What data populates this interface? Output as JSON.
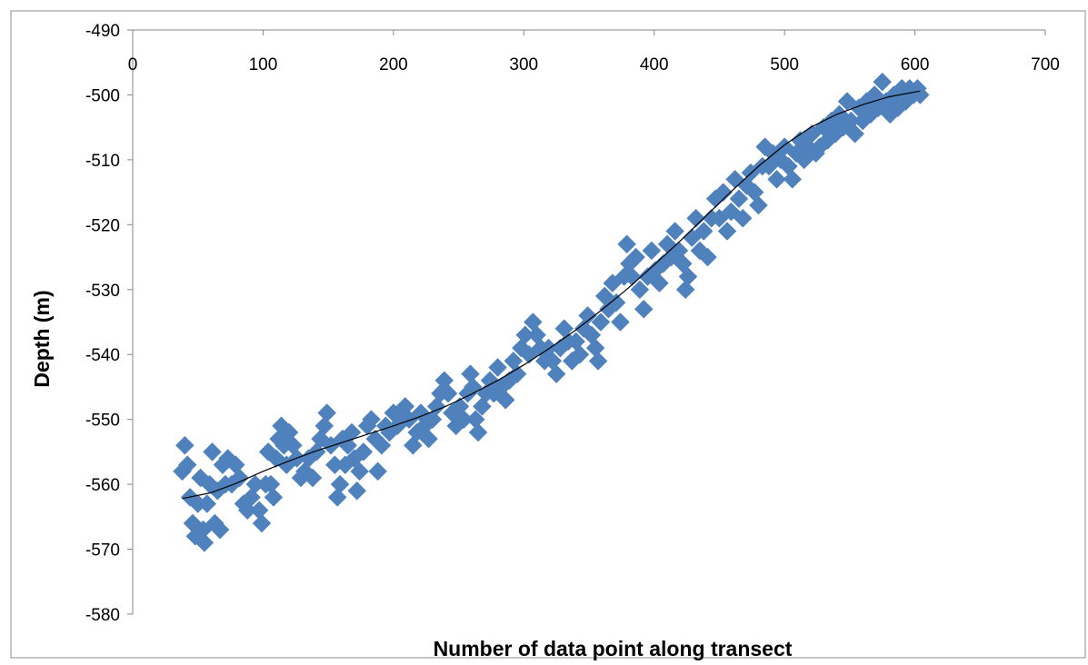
{
  "chart_data": {
    "type": "scatter",
    "title": "",
    "xlabel": "Number of data point along transect",
    "ylabel": "Depth (m)",
    "xlim": [
      0,
      700
    ],
    "ylim": [
      -580,
      -490
    ],
    "x_ticks": [
      0,
      100,
      200,
      300,
      400,
      500,
      600,
      700
    ],
    "y_ticks": [
      -490,
      -500,
      -510,
      -520,
      -530,
      -540,
      -550,
      -560,
      -570,
      -580
    ],
    "x_tick_labels": [
      "0",
      "100",
      "200",
      "300",
      "400",
      "500",
      "600",
      "700"
    ],
    "y_tick_labels": [
      "-490",
      "-500",
      "-510",
      "-520",
      "-530",
      "-540",
      "-550",
      "-560",
      "-570",
      "-580"
    ],
    "x_axis_position": "top",
    "grid": false,
    "legend": "none",
    "marker_color": "#4f81bd",
    "trend_color": "#000000",
    "series": [
      {
        "marker": "diamond",
        "points": [
          [
            38,
            -558
          ],
          [
            40,
            -554
          ],
          [
            42,
            -557
          ],
          [
            44,
            -562
          ],
          [
            46,
            -566
          ],
          [
            48,
            -568
          ],
          [
            50,
            -563
          ],
          [
            52,
            -559
          ],
          [
            54,
            -567
          ],
          [
            55,
            -569
          ],
          [
            57,
            -563
          ],
          [
            59,
            -560
          ],
          [
            61,
            -555
          ],
          [
            63,
            -566
          ],
          [
            65,
            -561
          ],
          [
            67,
            -567
          ],
          [
            69,
            -557
          ],
          [
            71,
            -560
          ],
          [
            73,
            -556
          ],
          [
            76,
            -560
          ],
          [
            79,
            -557
          ],
          [
            82,
            -559
          ],
          [
            85,
            -563
          ],
          [
            88,
            -564
          ],
          [
            91,
            -562
          ],
          [
            94,
            -560
          ],
          [
            97,
            -564
          ],
          [
            99,
            -566
          ],
          [
            102,
            -560
          ],
          [
            104,
            -555
          ],
          [
            106,
            -560
          ],
          [
            108,
            -562
          ],
          [
            110,
            -556
          ],
          [
            112,
            -553
          ],
          [
            114,
            -551
          ],
          [
            116,
            -554
          ],
          [
            118,
            -557
          ],
          [
            120,
            -552
          ],
          [
            123,
            -554
          ],
          [
            126,
            -556
          ],
          [
            129,
            -559
          ],
          [
            132,
            -558
          ],
          [
            135,
            -556
          ],
          [
            138,
            -559
          ],
          [
            141,
            -555
          ],
          [
            144,
            -553
          ],
          [
            147,
            -551
          ],
          [
            149,
            -549
          ],
          [
            152,
            -554
          ],
          [
            155,
            -557
          ],
          [
            157,
            -562
          ],
          [
            159,
            -560
          ],
          [
            161,
            -553
          ],
          [
            163,
            -557
          ],
          [
            165,
            -554
          ],
          [
            168,
            -552
          ],
          [
            170,
            -556
          ],
          [
            172,
            -561
          ],
          [
            174,
            -558
          ],
          [
            177,
            -555
          ],
          [
            180,
            -551
          ],
          [
            183,
            -550
          ],
          [
            186,
            -553
          ],
          [
            188,
            -558
          ],
          [
            191,
            -554
          ],
          [
            194,
            -551
          ],
          [
            197,
            -552
          ],
          [
            200,
            -549
          ],
          [
            203,
            -551
          ],
          [
            206,
            -549
          ],
          [
            209,
            -548
          ],
          [
            212,
            -550
          ],
          [
            215,
            -554
          ],
          [
            218,
            -552
          ],
          [
            221,
            -549
          ],
          [
            224,
            -551
          ],
          [
            227,
            -553
          ],
          [
            230,
            -550
          ],
          [
            233,
            -548
          ],
          [
            236,
            -546
          ],
          [
            239,
            -544
          ],
          [
            242,
            -546
          ],
          [
            245,
            -549
          ],
          [
            248,
            -551
          ],
          [
            251,
            -548
          ],
          [
            254,
            -550
          ],
          [
            257,
            -546
          ],
          [
            259,
            -543
          ],
          [
            261,
            -545
          ],
          [
            263,
            -550
          ],
          [
            265,
            -552
          ],
          [
            268,
            -548
          ],
          [
            271,
            -546
          ],
          [
            274,
            -544
          ],
          [
            277,
            -546
          ],
          [
            280,
            -542
          ],
          [
            283,
            -545
          ],
          [
            286,
            -547
          ],
          [
            289,
            -544
          ],
          [
            292,
            -541
          ],
          [
            295,
            -543
          ],
          [
            298,
            -539
          ],
          [
            301,
            -537
          ],
          [
            304,
            -540
          ],
          [
            307,
            -535
          ],
          [
            310,
            -537
          ],
          [
            313,
            -539
          ],
          [
            316,
            -541
          ],
          [
            319,
            -539
          ],
          [
            322,
            -541
          ],
          [
            325,
            -543
          ],
          [
            328,
            -539
          ],
          [
            331,
            -536
          ],
          [
            334,
            -538
          ],
          [
            337,
            -541
          ],
          [
            340,
            -538
          ],
          [
            343,
            -540
          ],
          [
            346,
            -536
          ],
          [
            349,
            -534
          ],
          [
            352,
            -537
          ],
          [
            355,
            -539
          ],
          [
            357,
            -541
          ],
          [
            359,
            -535
          ],
          [
            362,
            -531
          ],
          [
            365,
            -533
          ],
          [
            368,
            -529
          ],
          [
            371,
            -532
          ],
          [
            374,
            -535
          ],
          [
            377,
            -528
          ],
          [
            379,
            -523
          ],
          [
            381,
            -526
          ],
          [
            383,
            -528
          ],
          [
            386,
            -525
          ],
          [
            389,
            -530
          ],
          [
            392,
            -533
          ],
          [
            395,
            -528
          ],
          [
            398,
            -524
          ],
          [
            401,
            -527
          ],
          [
            404,
            -529
          ],
          [
            407,
            -526
          ],
          [
            410,
            -523
          ],
          [
            413,
            -525
          ],
          [
            416,
            -521
          ],
          [
            419,
            -524
          ],
          [
            422,
            -526
          ],
          [
            424,
            -530
          ],
          [
            426,
            -528
          ],
          [
            429,
            -522
          ],
          [
            432,
            -519
          ],
          [
            435,
            -524
          ],
          [
            438,
            -521
          ],
          [
            441,
            -525
          ],
          [
            444,
            -519
          ],
          [
            447,
            -516
          ],
          [
            450,
            -519
          ],
          [
            453,
            -515
          ],
          [
            456,
            -521
          ],
          [
            459,
            -518
          ],
          [
            462,
            -513
          ],
          [
            465,
            -516
          ],
          [
            468,
            -519
          ],
          [
            471,
            -514
          ],
          [
            474,
            -512
          ],
          [
            477,
            -515
          ],
          [
            480,
            -517
          ],
          [
            483,
            -511
          ],
          [
            485,
            -508
          ],
          [
            488,
            -511
          ],
          [
            491,
            -509
          ],
          [
            494,
            -513
          ],
          [
            497,
            -510
          ],
          [
            500,
            -508
          ],
          [
            503,
            -511
          ],
          [
            506,
            -513
          ],
          [
            509,
            -509
          ],
          [
            512,
            -507
          ],
          [
            515,
            -510
          ],
          [
            518,
            -508
          ],
          [
            521,
            -506
          ],
          [
            524,
            -509
          ],
          [
            527,
            -508
          ],
          [
            530,
            -505
          ],
          [
            533,
            -507
          ],
          [
            536,
            -504
          ],
          [
            539,
            -506
          ],
          [
            542,
            -503
          ],
          [
            545,
            -505
          ],
          [
            548,
            -501
          ],
          [
            551,
            -504
          ],
          [
            554,
            -506
          ],
          [
            557,
            -502
          ],
          [
            560,
            -504
          ],
          [
            563,
            -501
          ],
          [
            566,
            -503
          ],
          [
            569,
            -500
          ],
          [
            572,
            -502
          ],
          [
            575,
            -498
          ],
          [
            578,
            -501
          ],
          [
            581,
            -503
          ],
          [
            584,
            -500
          ],
          [
            587,
            -502
          ],
          [
            590,
            -499
          ],
          [
            593,
            -501
          ],
          [
            596,
            -499
          ],
          [
            599,
            -500
          ],
          [
            602,
            -499
          ],
          [
            604,
            -500
          ]
        ]
      }
    ],
    "trendline": [
      [
        38,
        -562.2
      ],
      [
        60,
        -561.3
      ],
      [
        80,
        -559.8
      ],
      [
        100,
        -558.0
      ],
      [
        120,
        -556.4
      ],
      [
        140,
        -554.9
      ],
      [
        160,
        -553.6
      ],
      [
        180,
        -552.3
      ],
      [
        200,
        -551.0
      ],
      [
        220,
        -549.6
      ],
      [
        240,
        -548.0
      ],
      [
        260,
        -546.1
      ],
      [
        280,
        -544.0
      ],
      [
        300,
        -541.6
      ],
      [
        320,
        -539.0
      ],
      [
        340,
        -536.2
      ],
      [
        360,
        -533.1
      ],
      [
        380,
        -529.8
      ],
      [
        400,
        -526.2
      ],
      [
        420,
        -522.5
      ],
      [
        440,
        -518.6
      ],
      [
        460,
        -514.7
      ],
      [
        480,
        -511.0
      ],
      [
        500,
        -507.7
      ],
      [
        520,
        -505.0
      ],
      [
        540,
        -503.0
      ],
      [
        560,
        -501.5
      ],
      [
        580,
        -500.3
      ],
      [
        604,
        -499.4
      ]
    ]
  }
}
